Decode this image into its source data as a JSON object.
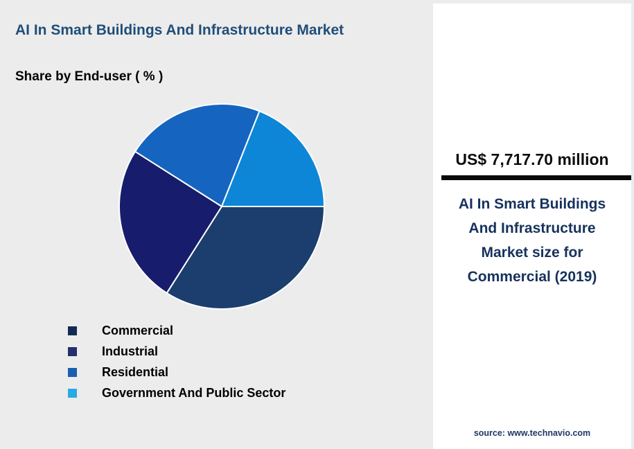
{
  "page": {
    "background_color": "#ececec"
  },
  "header": {
    "title": "AI In Smart Buildings And Infrastructure Market",
    "subtitle": "Share by End-user ( % )"
  },
  "chart_data": {
    "type": "pie",
    "title": "AI In Smart Buildings And Infrastructure Market",
    "subtitle": "Share by End-user ( % )",
    "categories": [
      "Commercial",
      "Industrial",
      "Residential",
      "Government And Public Sector"
    ],
    "values": [
      34,
      25,
      22,
      19
    ],
    "unit": "%",
    "colors": [
      "#1c3e6e",
      "#171d6c",
      "#1565c0",
      "#0d86d8"
    ],
    "legend_colors": [
      "#132b52",
      "#23306b",
      "#1a5fb0",
      "#29abe2"
    ],
    "start_angle": "east",
    "direction": "clockwise",
    "slice_border_color": "#ffffff",
    "legend_position": "bottom-left"
  },
  "info_panel": {
    "headline": "US$ 7,717.70 million",
    "description": "AI In Smart Buildings And Infrastructure Market size for Commercial (2019)",
    "source": "source: www.technavio.com",
    "accent_color": "#16325c"
  }
}
